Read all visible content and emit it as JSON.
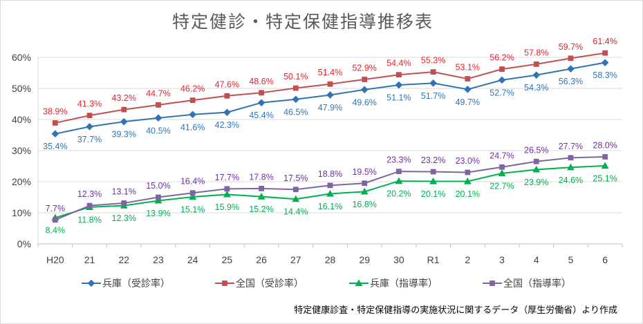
{
  "chart_data": {
    "type": "line",
    "title": "特定健診・特定保健指導推移表",
    "categories": [
      "H20",
      "21",
      "22",
      "23",
      "24",
      "25",
      "26",
      "27",
      "28",
      "29",
      "30",
      "R1",
      "2",
      "3",
      "4",
      "5",
      "6"
    ],
    "ylim": [
      0,
      60
    ],
    "yticks": [
      0,
      10,
      20,
      30,
      40,
      50,
      60
    ],
    "ytick_labels": [
      "0%",
      "10%",
      "20%",
      "30%",
      "40%",
      "50%",
      "60%"
    ],
    "grid": true,
    "legend": "bottom",
    "series": [
      {
        "name": "兵庫（受診率）",
        "color": "#2f74b5",
        "label_color": "#2e75b6",
        "marker": "diamond",
        "values": [
          35.4,
          37.7,
          39.3,
          40.5,
          41.6,
          42.3,
          45.4,
          46.5,
          47.9,
          49.6,
          51.1,
          51.7,
          49.7,
          52.7,
          54.3,
          56.3,
          58.3
        ],
        "labels": [
          "35.4%",
          "37.7%",
          "39.3%",
          "40.5%",
          "41.6%",
          "42.3%",
          "45.4%",
          "46.5%",
          "47.9%",
          "49.6%",
          "51.1%",
          "51.7%",
          "49.7%",
          "52.7%",
          "54.3%",
          "56.3%",
          "58.3%"
        ]
      },
      {
        "name": "全国（受診率）",
        "color": "#c0504d",
        "label_color": "#e3242b",
        "marker": "square",
        "values": [
          38.9,
          41.3,
          43.2,
          44.7,
          46.2,
          47.6,
          48.6,
          50.1,
          51.4,
          52.9,
          54.4,
          55.3,
          53.1,
          56.2,
          57.8,
          59.7,
          61.4
        ],
        "labels": [
          "38.9%",
          "41.3%",
          "43.2%",
          "44.7%",
          "46.2%",
          "47.6%",
          "48.6%",
          "50.1%",
          "51.4%",
          "52.9%",
          "54.4%",
          "55.3%",
          "53.1%",
          "56.2%",
          "57.8%",
          "59.7%",
          "61.4%"
        ]
      },
      {
        "name": "兵庫（指導率）",
        "color": "#00b050",
        "label_color": "#00b050",
        "marker": "triangle",
        "values": [
          8.4,
          11.8,
          12.3,
          13.9,
          15.1,
          15.9,
          15.2,
          14.4,
          16.1,
          16.8,
          20.2,
          20.1,
          20.1,
          22.7,
          23.9,
          24.6,
          25.1
        ],
        "labels": [
          "8.4%",
          "11.8%",
          "12.3%",
          "13.9%",
          "15.1%",
          "15.9%",
          "15.2%",
          "14.4%",
          "16.1%",
          "16.8%",
          "20.2%",
          "20.1%",
          "20.1%",
          "22.7%",
          "23.9%",
          "24.6%",
          "25.1%"
        ]
      },
      {
        "name": "全国（指導率）",
        "color": "#8064a2",
        "label_color": "#7030a0",
        "marker": "square",
        "values": [
          7.7,
          12.3,
          13.1,
          15.0,
          16.4,
          17.7,
          17.8,
          17.5,
          18.8,
          19.5,
          23.3,
          23.2,
          23.0,
          24.7,
          26.5,
          27.7,
          28.0
        ],
        "labels": [
          "7.7%",
          "12.3%",
          "13.1%",
          "15.0%",
          "16.4%",
          "17.7%",
          "17.8%",
          "17.5%",
          "18.8%",
          "19.5%",
          "23.3%",
          "23.2%",
          "23.0%",
          "24.7%",
          "26.5%",
          "27.7%",
          "28.0%"
        ]
      }
    ]
  },
  "footnote": "特定健康診査・特定保健指導の実施状況に関するデータ（厚生労働省）より作成"
}
